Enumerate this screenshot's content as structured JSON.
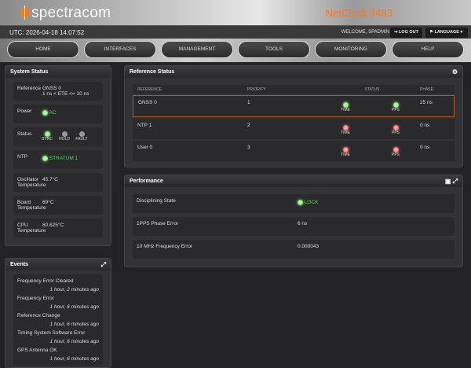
{
  "header": {
    "brand": "spectracom",
    "model": "NetClock 9483",
    "utc": "UTC: 2026-04-18 14:07:52",
    "welcome": "WELCOME, SPADMIN",
    "logout": "LOG OUT",
    "language": "LANGUAGE"
  },
  "nav": [
    "HOME",
    "INTERFACES",
    "MANAGEMENT",
    "TOOLS",
    "MONITORING",
    "HELP"
  ],
  "system_status": {
    "title": "System Status",
    "reference": {
      "label": "Reference",
      "value": "GNSS 0",
      "detail": "1 ns < ETE <= 10 ns"
    },
    "power": {
      "label": "Power",
      "value": "AC"
    },
    "status": {
      "label": "Status",
      "leds": [
        "SYNC",
        "HOLD",
        "FAULT"
      ]
    },
    "ntp": {
      "label": "NTP",
      "value": "STRATUM 1"
    },
    "oscillator": {
      "label1": "Oscillator",
      "label2": "Temperature",
      "value": "45.7°C"
    },
    "board": {
      "label1": "Board",
      "label2": "Temperature",
      "value": "69°C"
    },
    "cpu": {
      "label1": "CPU",
      "label2": "Temperature",
      "value": "80.625°C"
    }
  },
  "events": {
    "title": "Events",
    "items": [
      {
        "text": "Frequency Error Cleared",
        "time": "1 hour, 2 minutes ago"
      },
      {
        "text": "Frequency Error",
        "time": "1 hour, 6 minutes ago"
      },
      {
        "text": "Reference Change",
        "time": "1 hour, 6 minutes ago"
      },
      {
        "text": "Timing System Software Error",
        "time": "1 hour, 6 minutes ago"
      },
      {
        "text": "GPS Antenna OK",
        "time": "1 hour, 6 minutes ago"
      }
    ]
  },
  "reference_status": {
    "title": "Reference Status",
    "columns": [
      "REFERENCE",
      "PRIORITY",
      "STATUS",
      "PHASE"
    ],
    "led_labels": [
      "TIME",
      "PPS"
    ],
    "rows": [
      {
        "ref": "GNSS 0",
        "priority": "1",
        "time": "green",
        "pps": "green",
        "phase": "25 ns"
      },
      {
        "ref": "NTP 1",
        "priority": "2",
        "time": "red",
        "pps": "red",
        "phase": "0 ns"
      },
      {
        "ref": "User 0",
        "priority": "3",
        "time": "red",
        "pps": "red",
        "phase": "0 ns"
      }
    ]
  },
  "performance": {
    "title": "Performance",
    "rows": [
      {
        "label": "Disciplining State",
        "value": "LOCK"
      },
      {
        "label": "1PPS Phase Error",
        "value": "6 ns"
      },
      {
        "label": "10 MHz Frequency Error",
        "value": "0.000043"
      }
    ]
  }
}
